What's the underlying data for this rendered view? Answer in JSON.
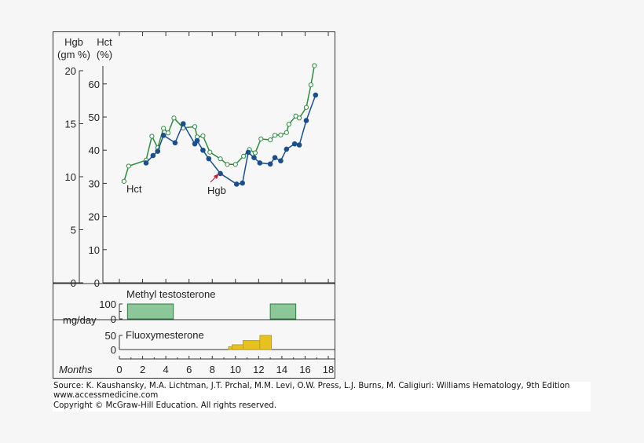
{
  "chart_data": {
    "type": "line",
    "main_panel": {
      "left_axis": {
        "label_line1": "Hgb",
        "label_line2": "(gm %)",
        "ylim": [
          0,
          20
        ],
        "ticks": [
          0,
          5,
          10,
          15,
          20
        ]
      },
      "right_axis": {
        "label_line1": "Hct",
        "label_line2": "(%)",
        "ylim": [
          0,
          65
        ],
        "ticks": [
          0,
          10,
          20,
          30,
          40,
          50,
          60
        ]
      },
      "series": [
        {
          "name": "Hct",
          "axis": "Hct",
          "color": "#2e8b3e",
          "marker": "open-circle",
          "x": [
            0.4,
            0.8,
            2.3,
            2.8,
            3.3,
            3.8,
            4.2,
            4.7,
            5.5,
            6.5,
            6.7,
            7.2,
            7.8,
            8.7,
            9.3,
            10.0,
            10.7,
            11.2,
            11.7,
            12.2,
            13.0,
            13.4,
            13.9,
            14.4,
            14.6,
            15.2,
            15.5,
            16.1,
            16.5,
            16.8
          ],
          "y": [
            30.6,
            35.2,
            37.0,
            44.2,
            40.7,
            46.6,
            45.2,
            49.7,
            46.7,
            47.1,
            44.0,
            44.3,
            39.4,
            37.4,
            35.7,
            35.7,
            38.2,
            40.2,
            39.2,
            43.4,
            43.1,
            44.5,
            44.6,
            45.3,
            47.8,
            50.3,
            49.7,
            52.9,
            59.7,
            65.5
          ]
        },
        {
          "name": "Hgb",
          "axis": "Hgb",
          "color": "#1b4f8c",
          "marker": "filled-circle",
          "x": [
            2.3,
            2.9,
            3.3,
            3.8,
            4.8,
            5.5,
            6.5,
            6.7,
            7.2,
            7.7,
            8.7,
            10.1,
            10.6,
            11.1,
            11.6,
            12.1,
            13.0,
            13.4,
            13.9,
            14.4,
            15.1,
            15.5,
            16.1,
            16.9
          ],
          "y": [
            11.3,
            12.0,
            12.4,
            13.9,
            13.2,
            15.0,
            13.1,
            13.4,
            12.5,
            11.7,
            10.3,
            9.3,
            9.4,
            12.3,
            11.8,
            11.3,
            11.2,
            11.8,
            11.5,
            12.6,
            13.1,
            13.0,
            15.3,
            17.7
          ]
        }
      ],
      "annotations": [
        {
          "text": "Hct"
        },
        {
          "text": "Hgb",
          "arrow_color": "#c0223a"
        }
      ]
    },
    "dose_panels": {
      "unit_label": "mg/day",
      "methyl": {
        "name": "Methyl testosterone",
        "ticks": [
          0,
          100
        ],
        "color": "#8cc79a",
        "edge": "#2e7d3e",
        "periods": [
          {
            "start": 0.7,
            "end": 4.65,
            "dose": 100
          },
          {
            "start": 13.0,
            "end": 15.2,
            "dose": 100
          }
        ]
      },
      "fluoxy": {
        "name": "Fluoxymesterone",
        "ticks": [
          0,
          50
        ],
        "color": "#e6c21e",
        "edge": "#b8961a",
        "steps": [
          {
            "start": 9.4,
            "end": 9.7,
            "dose": 10
          },
          {
            "start": 9.7,
            "end": 10.65,
            "dose": 17
          },
          {
            "start": 10.65,
            "end": 12.1,
            "dose": 32
          },
          {
            "start": 12.1,
            "end": 13.1,
            "dose": 50
          }
        ]
      }
    },
    "x_axis": {
      "label": "Months",
      "xlim": [
        0,
        18
      ],
      "ticks": [
        0,
        2,
        4,
        6,
        8,
        10,
        12,
        14,
        16,
        18
      ]
    }
  },
  "source": {
    "line1": "Source: K. Kaushansky, M.A. Lichtman, J.T. Prchal, M.M. Levi, O.W. Press, L.J. Burns, M. Caligiuri: Williams Hematology, 9th Edition",
    "line2": "www.accessmedicine.com",
    "line3": "Copyright © McGraw-Hill Education.  All rights reserved."
  }
}
